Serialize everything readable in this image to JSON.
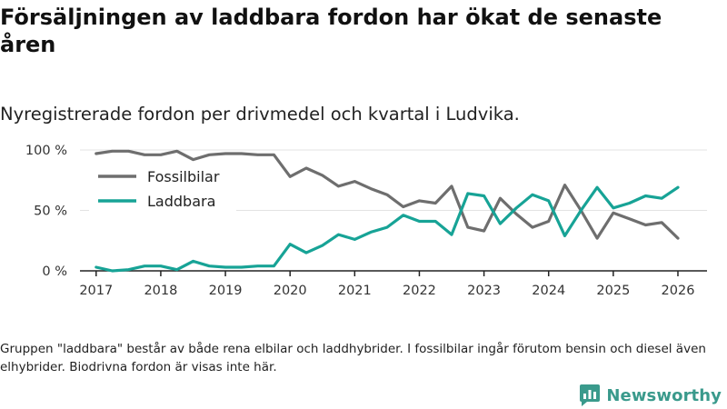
{
  "title": "Försäljningen av laddbara fordon har ökat de senaste åren",
  "subtitle": "Nyregistrerade fordon per drivmedel och kvartal i Ludvika.",
  "footnote": "Gruppen \"laddbara\" består av både rena elbilar och laddhybrider. I fossilbilar ingår förutom bensin och diesel även elhybrider. Biodrivna fordon är visas inte här.",
  "brand": {
    "name": "Newsworthy",
    "icon": "newsworthy-logo-icon",
    "color": "#3a9a8c"
  },
  "chart_data": {
    "type": "line",
    "title": "Försäljningen av laddbara fordon har ökat de senaste åren",
    "xlabel": "",
    "ylabel": "",
    "x": [
      2017.0,
      2017.25,
      2017.5,
      2017.75,
      2018.0,
      2018.25,
      2018.5,
      2018.75,
      2019.0,
      2019.25,
      2019.5,
      2019.75,
      2020.0,
      2020.25,
      2020.5,
      2020.75,
      2021.0,
      2021.25,
      2021.5,
      2021.75,
      2022.0,
      2022.25,
      2022.5,
      2022.75,
      2023.0,
      2023.25,
      2023.5,
      2023.75,
      2024.0,
      2024.25,
      2024.5,
      2024.75,
      2025.0,
      2025.25,
      2025.5,
      2025.75,
      2026.0
    ],
    "xlim": [
      2016.75,
      2026.45
    ],
    "ylim": [
      0,
      100
    ],
    "x_ticks": [
      {
        "value": 2017,
        "label": "2017"
      },
      {
        "value": 2018,
        "label": "2018"
      },
      {
        "value": 2019,
        "label": "2019"
      },
      {
        "value": 2020,
        "label": "2020"
      },
      {
        "value": 2021,
        "label": "2021"
      },
      {
        "value": 2022,
        "label": "2022"
      },
      {
        "value": 2023,
        "label": "2023"
      },
      {
        "value": 2024,
        "label": "2024"
      },
      {
        "value": 2025,
        "label": "2025"
      },
      {
        "value": 2026,
        "label": "2026"
      }
    ],
    "y_ticks": [
      {
        "value": 0,
        "label": "0 %"
      },
      {
        "value": 50,
        "label": "50 %"
      },
      {
        "value": 100,
        "label": "100 %"
      }
    ],
    "grid": true,
    "legend_position": "top-left",
    "series": [
      {
        "name": "Fossilbilar",
        "color": "#6e6e6e",
        "values": [
          97,
          99,
          99,
          96,
          96,
          99,
          92,
          96,
          97,
          97,
          96,
          96,
          78,
          85,
          79,
          70,
          74,
          68,
          63,
          53,
          58,
          56,
          70,
          36,
          33,
          60,
          47,
          36,
          41,
          71,
          50,
          27,
          48,
          43,
          38,
          40,
          27
        ]
      },
      {
        "name": "Laddbara",
        "color": "#17a396",
        "values": [
          3,
          0,
          1,
          4,
          4,
          1,
          8,
          4,
          3,
          3,
          4,
          4,
          22,
          15,
          21,
          30,
          26,
          32,
          36,
          46,
          41,
          41,
          30,
          64,
          62,
          39,
          52,
          63,
          58,
          29,
          50,
          69,
          52,
          56,
          62,
          60,
          69
        ]
      }
    ]
  }
}
